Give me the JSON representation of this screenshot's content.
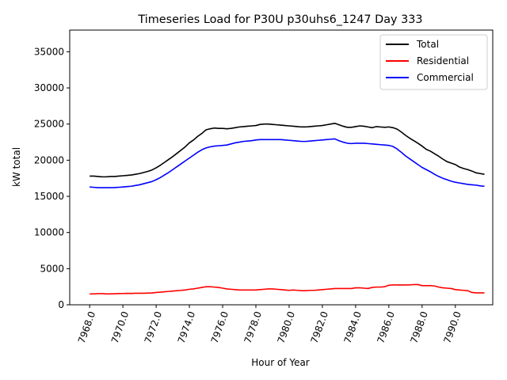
{
  "chart_data": {
    "type": "line",
    "title": "Timeseries Load for P30U p30uhs6_1247  Day 333",
    "xlabel": "Hour of Year",
    "ylabel": "kW total",
    "xlim": [
      7966.8,
      7992.25
    ],
    "ylim": [
      0,
      38000
    ],
    "xticks": [
      7968,
      7970,
      7972,
      7974,
      7976,
      7978,
      7980,
      7982,
      7984,
      7986,
      7988,
      7990
    ],
    "xtick_labels": [
      "7968.0",
      "7970.0",
      "7972.0",
      "7974.0",
      "7976.0",
      "7978.0",
      "7980.0",
      "7982.0",
      "7984.0",
      "7986.0",
      "7988.0",
      "7990.0"
    ],
    "yticks": [
      0,
      5000,
      10000,
      15000,
      20000,
      25000,
      30000,
      35000
    ],
    "ytick_labels": [
      "0",
      "5000",
      "10000",
      "15000",
      "20000",
      "25000",
      "30000",
      "35000"
    ],
    "legend_position": "top-right",
    "x": [
      7968.0,
      7968.25,
      7968.5,
      7968.75,
      7969.0,
      7969.25,
      7969.5,
      7969.75,
      7970.0,
      7970.25,
      7970.5,
      7970.75,
      7971.0,
      7971.25,
      7971.5,
      7971.75,
      7972.0,
      7972.25,
      7972.5,
      7972.75,
      7973.0,
      7973.25,
      7973.5,
      7973.75,
      7974.0,
      7974.25,
      7974.5,
      7974.75,
      7975.0,
      7975.25,
      7975.5,
      7975.75,
      7976.0,
      7976.25,
      7976.5,
      7976.75,
      7977.0,
      7977.25,
      7977.5,
      7977.75,
      7978.0,
      7978.25,
      7978.5,
      7978.75,
      7979.0,
      7979.25,
      7979.5,
      7979.75,
      7980.0,
      7980.25,
      7980.5,
      7980.75,
      7981.0,
      7981.25,
      7981.5,
      7981.75,
      7982.0,
      7982.25,
      7982.5,
      7982.75,
      7983.0,
      7983.25,
      7983.5,
      7983.75,
      7984.0,
      7984.25,
      7984.5,
      7984.75,
      7985.0,
      7985.25,
      7985.5,
      7985.75,
      7986.0,
      7986.25,
      7986.5,
      7986.75,
      7987.0,
      7987.25,
      7987.5,
      7987.75,
      7988.0,
      7988.25,
      7988.5,
      7988.75,
      7989.0,
      7989.25,
      7989.5,
      7989.75,
      7990.0,
      7990.25,
      7990.5,
      7990.75,
      7991.0,
      7991.25,
      7991.5,
      7991.75
    ],
    "series": [
      {
        "name": "Total",
        "color": "#000000",
        "values": [
          17800,
          17800,
          17750,
          17700,
          17700,
          17750,
          17750,
          17800,
          17850,
          17900,
          17950,
          18050,
          18150,
          18300,
          18450,
          18650,
          18950,
          19300,
          19700,
          20100,
          20500,
          20950,
          21400,
          21850,
          22400,
          22800,
          23300,
          23700,
          24200,
          24350,
          24450,
          24400,
          24400,
          24350,
          24400,
          24500,
          24600,
          24650,
          24700,
          24750,
          24800,
          24950,
          25000,
          25000,
          24950,
          24900,
          24850,
          24800,
          24750,
          24700,
          24650,
          24600,
          24600,
          24650,
          24700,
          24750,
          24800,
          24900,
          25000,
          25100,
          24900,
          24700,
          24550,
          24550,
          24650,
          24750,
          24700,
          24600,
          24500,
          24650,
          24600,
          24550,
          24600,
          24500,
          24300,
          23900,
          23450,
          23050,
          22700,
          22350,
          21950,
          21500,
          21250,
          20900,
          20550,
          20150,
          19800,
          19600,
          19400,
          19050,
          18850,
          18700,
          18500,
          18250,
          18150,
          18050
        ]
      },
      {
        "name": "Residential",
        "color": "#ff0000",
        "values": [
          1500,
          1520,
          1540,
          1550,
          1500,
          1510,
          1530,
          1550,
          1560,
          1580,
          1570,
          1590,
          1600,
          1600,
          1620,
          1640,
          1700,
          1750,
          1800,
          1850,
          1900,
          1950,
          2000,
          2050,
          2150,
          2200,
          2300,
          2400,
          2500,
          2500,
          2450,
          2400,
          2300,
          2200,
          2150,
          2100,
          2050,
          2050,
          2050,
          2050,
          2050,
          2100,
          2150,
          2200,
          2200,
          2150,
          2100,
          2050,
          2000,
          2050,
          2000,
          1950,
          1950,
          2000,
          2000,
          2050,
          2100,
          2150,
          2200,
          2250,
          2250,
          2250,
          2250,
          2250,
          2350,
          2350,
          2300,
          2250,
          2400,
          2450,
          2450,
          2500,
          2700,
          2750,
          2750,
          2750,
          2750,
          2750,
          2800,
          2800,
          2650,
          2650,
          2650,
          2600,
          2450,
          2350,
          2300,
          2250,
          2100,
          2050,
          2000,
          1950,
          1700,
          1650,
          1650,
          1650
        ]
      },
      {
        "name": "Commercial",
        "color": "#0000ff",
        "values": [
          16300,
          16250,
          16200,
          16200,
          16200,
          16200,
          16220,
          16250,
          16300,
          16350,
          16400,
          16500,
          16600,
          16750,
          16900,
          17050,
          17300,
          17600,
          17950,
          18300,
          18700,
          19100,
          19500,
          19900,
          20300,
          20700,
          21100,
          21450,
          21700,
          21850,
          21950,
          22000,
          22050,
          22100,
          22250,
          22400,
          22500,
          22600,
          22650,
          22700,
          22800,
          22850,
          22850,
          22850,
          22850,
          22850,
          22850,
          22800,
          22750,
          22700,
          22650,
          22600,
          22600,
          22650,
          22700,
          22750,
          22800,
          22850,
          22900,
          22950,
          22700,
          22500,
          22350,
          22300,
          22350,
          22350,
          22350,
          22300,
          22250,
          22200,
          22150,
          22100,
          22050,
          21900,
          21550,
          21100,
          20600,
          20200,
          19800,
          19400,
          19000,
          18700,
          18400,
          18050,
          17750,
          17500,
          17300,
          17100,
          16950,
          16850,
          16750,
          16650,
          16600,
          16550,
          16450,
          16400
        ]
      }
    ]
  }
}
